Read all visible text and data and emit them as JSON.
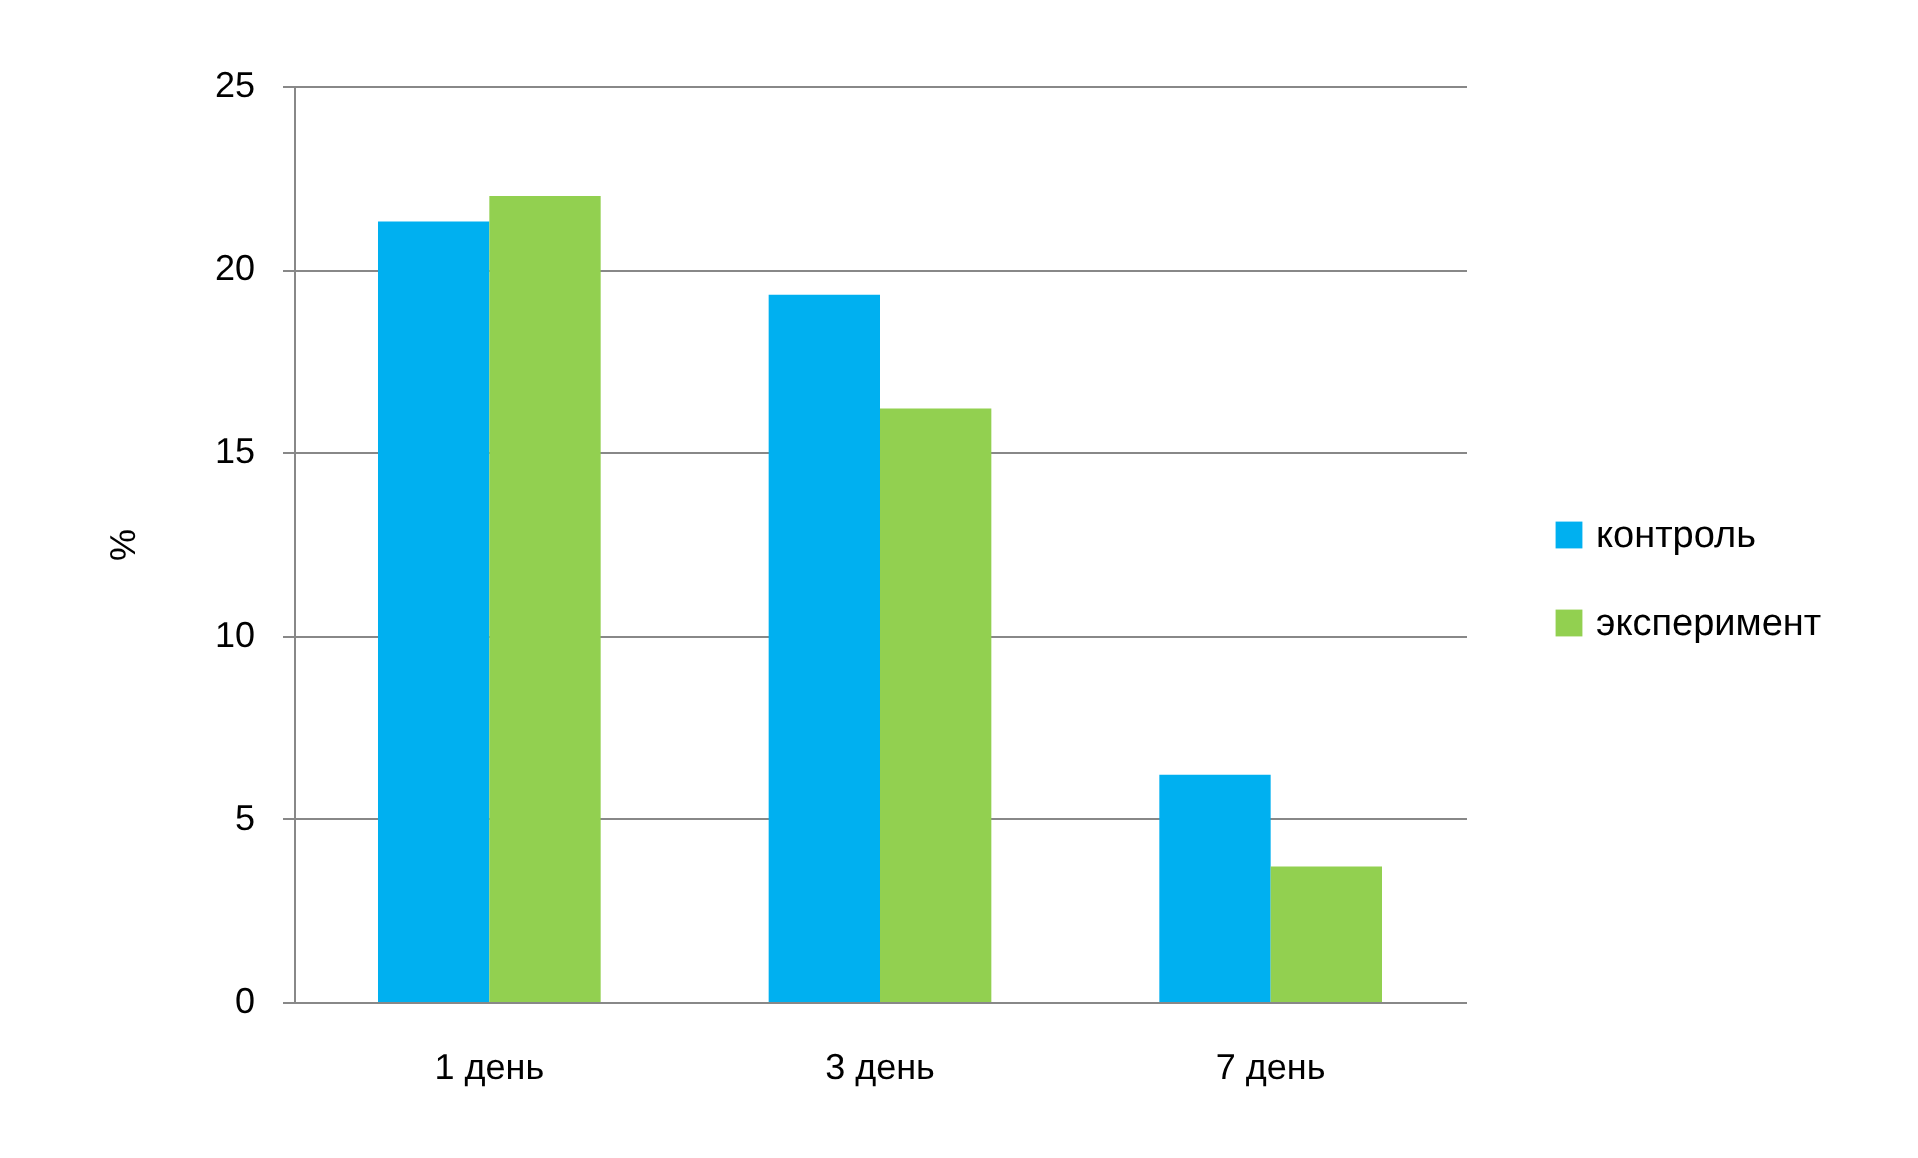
{
  "chart_data": {
    "type": "bar",
    "ylabel": "%",
    "categories": [
      "1 день",
      "3 день",
      "7 день"
    ],
    "series": [
      {
        "name": "контроль",
        "color": "#00b0f0",
        "values": [
          21.3,
          19.3,
          6.2
        ]
      },
      {
        "name": "эксперимент",
        "color": "#92d050",
        "values": [
          22.0,
          16.2,
          3.7
        ]
      }
    ],
    "ylim": [
      0,
      25
    ],
    "yticks": [
      0,
      5,
      10,
      15,
      20,
      25
    ],
    "grid": "y",
    "legend": "right"
  }
}
